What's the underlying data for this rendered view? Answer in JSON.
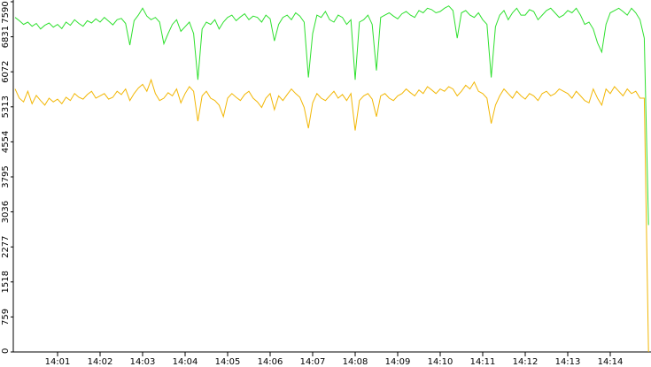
{
  "chart_data": {
    "type": "line",
    "categories": [
      null,
      null,
      null,
      null,
      null,
      null,
      null,
      null,
      null,
      null,
      "14:01",
      null,
      null,
      null,
      null,
      null,
      null,
      null,
      null,
      null,
      "14:02",
      null,
      null,
      null,
      null,
      null,
      null,
      null,
      null,
      null,
      "14:03",
      null,
      null,
      null,
      null,
      null,
      null,
      null,
      null,
      null,
      "14:04",
      null,
      null,
      null,
      null,
      null,
      null,
      null,
      null,
      null,
      "14:05",
      null,
      null,
      null,
      null,
      null,
      null,
      null,
      null,
      null,
      "14:06",
      null,
      null,
      null,
      null,
      null,
      null,
      null,
      null,
      null,
      "14:07",
      null,
      null,
      null,
      null,
      null,
      null,
      null,
      null,
      null,
      "14:08",
      null,
      null,
      null,
      null,
      null,
      null,
      null,
      null,
      null,
      "14:09",
      null,
      null,
      null,
      null,
      null,
      null,
      null,
      null,
      null,
      "14:10",
      null,
      null,
      null,
      null,
      null,
      null,
      null,
      null,
      null,
      "14:11",
      null,
      null,
      null,
      null,
      null,
      null,
      null,
      null,
      null,
      "14:12",
      null,
      null,
      null,
      null,
      null,
      null,
      null,
      null,
      null,
      "14:13",
      null,
      null,
      null,
      null,
      null,
      null,
      null,
      null,
      null,
      "14:14",
      null,
      null,
      null,
      null,
      null,
      null,
      null,
      null,
      null
    ],
    "series": [
      {
        "color": "#2ee02e",
        "values": [
          7250,
          7180,
          7100,
          7150,
          7060,
          7120,
          7000,
          7080,
          7130,
          7040,
          7100,
          7010,
          7150,
          7080,
          7200,
          7120,
          7060,
          7180,
          7130,
          7220,
          7150,
          7250,
          7170,
          7090,
          7200,
          7230,
          7120,
          6650,
          7180,
          7300,
          7450,
          7280,
          7200,
          7250,
          7150,
          6680,
          6900,
          7100,
          7200,
          6950,
          7050,
          7150,
          6900,
          5900,
          7000,
          7150,
          7100,
          7200,
          7000,
          7150,
          7250,
          7300,
          7180,
          7260,
          7330,
          7200,
          7280,
          7250,
          7150,
          7300,
          7220,
          6740,
          7100,
          7250,
          7300,
          7200,
          7350,
          7280,
          7150,
          5950,
          6900,
          7300,
          7250,
          7380,
          7200,
          7150,
          7300,
          7250,
          7100,
          7200,
          5900,
          7150,
          7200,
          7300,
          7100,
          6100,
          7250,
          7300,
          7350,
          7280,
          7220,
          7330,
          7380,
          7300,
          7250,
          7400,
          7350,
          7450,
          7420,
          7350,
          7380,
          7450,
          7500,
          7400,
          6800,
          7350,
          7400,
          7300,
          7250,
          7350,
          7200,
          7100,
          5950,
          7050,
          7300,
          7400,
          7200,
          7350,
          7450,
          7300,
          7300,
          7420,
          7380,
          7200,
          7300,
          7400,
          7450,
          7350,
          7250,
          7300,
          7400,
          7350,
          7450,
          7300,
          7100,
          7150,
          7000,
          6700,
          6500,
          7100,
          7350,
          7400,
          7450,
          7380,
          7300,
          7450,
          7350,
          7200,
          6800,
          2750
        ]
      },
      {
        "color": "#f2b705",
        "values": [
          5700,
          5500,
          5420,
          5650,
          5380,
          5560,
          5450,
          5350,
          5500,
          5420,
          5480,
          5380,
          5520,
          5450,
          5600,
          5520,
          5480,
          5580,
          5650,
          5500,
          5550,
          5600,
          5480,
          5520,
          5650,
          5580,
          5700,
          5450,
          5600,
          5720,
          5800,
          5650,
          5900,
          5600,
          5450,
          5500,
          5620,
          5550,
          5700,
          5400,
          5600,
          5750,
          5650,
          5000,
          5550,
          5650,
          5500,
          5450,
          5350,
          5100,
          5500,
          5600,
          5520,
          5450,
          5580,
          5650,
          5500,
          5420,
          5300,
          5500,
          5600,
          5250,
          5550,
          5450,
          5580,
          5700,
          5600,
          5520,
          5300,
          4850,
          5400,
          5600,
          5500,
          5450,
          5550,
          5650,
          5500,
          5580,
          5450,
          5600,
          4800,
          5450,
          5550,
          5600,
          5480,
          5100,
          5550,
          5600,
          5500,
          5450,
          5550,
          5600,
          5700,
          5620,
          5550,
          5680,
          5600,
          5750,
          5680,
          5600,
          5700,
          5650,
          5750,
          5700,
          5550,
          5650,
          5780,
          5700,
          5850,
          5650,
          5600,
          5500,
          4950,
          5350,
          5550,
          5700,
          5600,
          5500,
          5650,
          5550,
          5480,
          5600,
          5550,
          5450,
          5600,
          5650,
          5550,
          5600,
          5700,
          5650,
          5600,
          5500,
          5650,
          5550,
          5450,
          5400,
          5700,
          5500,
          5350,
          5700,
          5600,
          5750,
          5650,
          5550,
          5700,
          5600,
          5650,
          5500,
          5500,
          0
        ]
      }
    ],
    "ylim": [
      0,
      7590
    ],
    "yticks": [
      0,
      759,
      1518,
      2277,
      3036,
      3795,
      4554,
      5313,
      6072,
      6831,
      7590
    ]
  }
}
